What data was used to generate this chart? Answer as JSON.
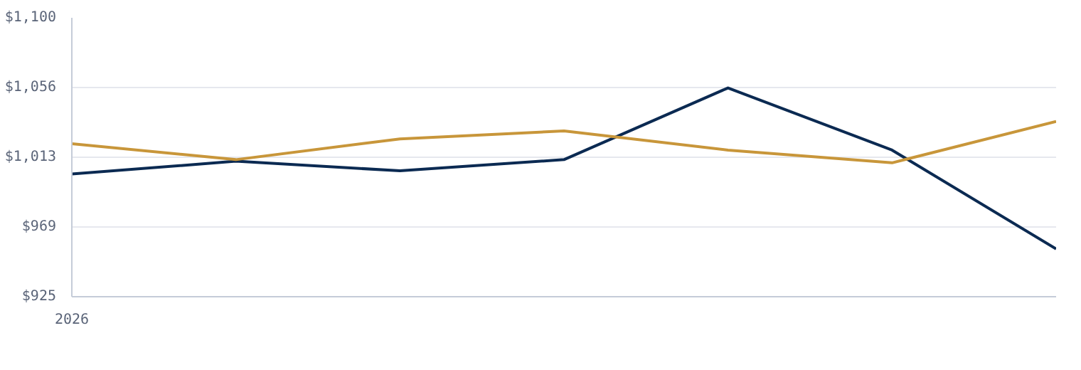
{
  "chart_data": {
    "type": "line",
    "categories": [
      "2026",
      null,
      null,
      null,
      null,
      null,
      null
    ],
    "series": [
      {
        "color": "#0b2a52",
        "values": [
          1002,
          1010,
          1004,
          1011,
          1056,
          1017,
          955
        ]
      },
      {
        "color": "#c8963a",
        "values": [
          1021,
          1011,
          1024,
          1029,
          1017,
          1009,
          1035
        ]
      }
    ],
    "ylim": [
      925,
      1100
    ],
    "yticks": [
      {
        "value": 925,
        "label": "$925"
      },
      {
        "value": 968.75,
        "label": "$969"
      },
      {
        "value": 1012.5,
        "label": "$1,013"
      },
      {
        "value": 1056.25,
        "label": "$1,056"
      },
      {
        "value": 1100,
        "label": "$1,100"
      }
    ],
    "grid": "y",
    "marker": "none",
    "line_style": "solid"
  }
}
